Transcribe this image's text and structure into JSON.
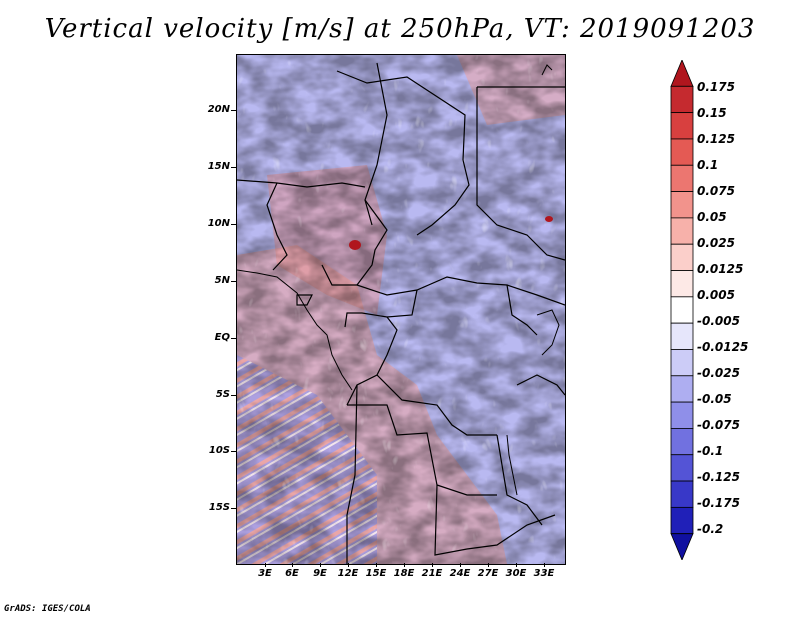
{
  "title": "Vertical velocity [m/s] at 250hPa, VT: 2019091203",
  "credit": "GrADS: IGES/COLA",
  "map": {
    "variable": "Vertical velocity",
    "units": "m/s",
    "level": "250hPa",
    "valid_time": "2019091203",
    "lat_labels": [
      "20N",
      "15N",
      "10N",
      "5N",
      "EQ",
      "5S",
      "10S",
      "15S"
    ],
    "lon_labels": [
      "3E",
      "6E",
      "9E",
      "12E",
      "15E",
      "18E",
      "21E",
      "24E",
      "27E",
      "30E",
      "33E"
    ]
  },
  "colorbar": {
    "labels": [
      "0.175",
      "0.15",
      "0.125",
      "0.1",
      "0.075",
      "0.05",
      "0.025",
      "0.0125",
      "0.005",
      "-0.005",
      "-0.0125",
      "-0.025",
      "-0.05",
      "-0.075",
      "-0.1",
      "-0.125",
      "-0.175",
      "-0.2"
    ],
    "colors": [
      "#b0161e",
      "#c52a2f",
      "#d8403f",
      "#e45a54",
      "#ec7670",
      "#f2938c",
      "#f7b1aa",
      "#fbcfca",
      "#fde9e6",
      "#ffffff",
      "#e6e6fb",
      "#ccccf7",
      "#aeaef1",
      "#8f8fe9",
      "#7171e0",
      "#5454d6",
      "#3838c8",
      "#2020b8",
      "#1010a0"
    ]
  }
}
